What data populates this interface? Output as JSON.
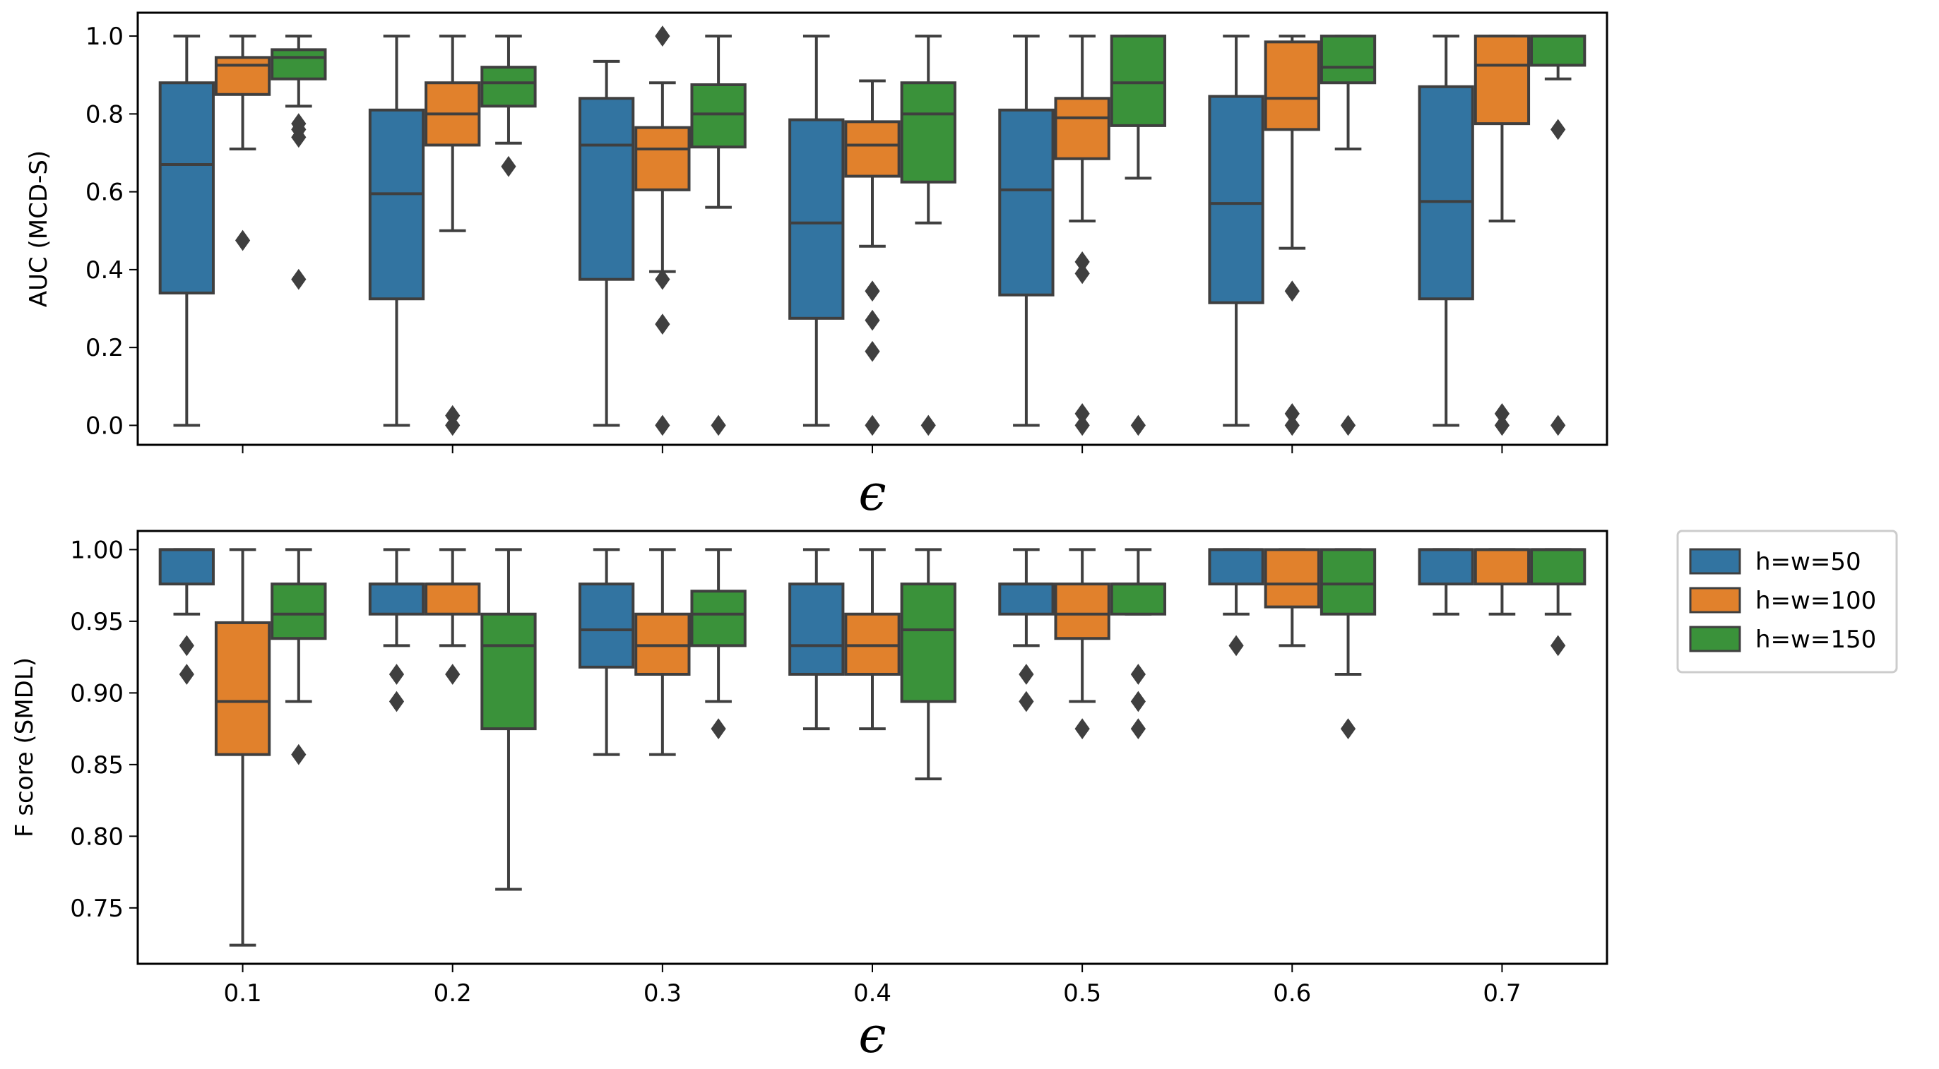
{
  "colors": {
    "h=w=50": "#3274a1",
    "h=w=100": "#e1812c",
    "h=w=150": "#3a923a",
    "line": "#3f3f3f",
    "frame": "#000000"
  },
  "legend": {
    "entries": [
      "h=w=50",
      "h=w=100",
      "h=w=150"
    ],
    "placement": "right-of-bottom-panel"
  },
  "chart_data": [
    {
      "type": "box",
      "panel": "top",
      "title": "",
      "xlabel": "ϵ",
      "ylabel": "AUC (MCD-S)",
      "ylim": [
        -0.05,
        1.06
      ],
      "yticks": [
        0.0,
        0.2,
        0.4,
        0.6,
        0.8,
        1.0
      ],
      "ytick_labels": [
        "0.0",
        "0.2",
        "0.4",
        "0.6",
        "0.8",
        "1.0"
      ],
      "categories": [
        "0.1",
        "0.2",
        "0.3",
        "0.4",
        "0.5",
        "0.6",
        "0.7"
      ],
      "show_xtick_labels": false,
      "series": [
        {
          "name": "h=w=50",
          "boxes": [
            {
              "whislo": 0.0,
              "q1": 0.34,
              "med": 0.67,
              "q3": 0.88,
              "whishi": 1.0,
              "fliers": []
            },
            {
              "whislo": 0.0,
              "q1": 0.325,
              "med": 0.595,
              "q3": 0.81,
              "whishi": 1.0,
              "fliers": []
            },
            {
              "whislo": 0.0,
              "q1": 0.375,
              "med": 0.72,
              "q3": 0.84,
              "whishi": 0.935,
              "fliers": []
            },
            {
              "whislo": 0.0,
              "q1": 0.275,
              "med": 0.52,
              "q3": 0.785,
              "whishi": 1.0,
              "fliers": []
            },
            {
              "whislo": 0.0,
              "q1": 0.335,
              "med": 0.605,
              "q3": 0.81,
              "whishi": 1.0,
              "fliers": []
            },
            {
              "whislo": 0.0,
              "q1": 0.315,
              "med": 0.57,
              "q3": 0.845,
              "whishi": 1.0,
              "fliers": []
            },
            {
              "whislo": 0.0,
              "q1": 0.325,
              "med": 0.575,
              "q3": 0.87,
              "whishi": 1.0,
              "fliers": []
            }
          ]
        },
        {
          "name": "h=w=100",
          "boxes": [
            {
              "whislo": 0.71,
              "q1": 0.85,
              "med": 0.925,
              "q3": 0.945,
              "whishi": 1.0,
              "fliers": [
                0.475
              ]
            },
            {
              "whislo": 0.5,
              "q1": 0.72,
              "med": 0.8,
              "q3": 0.88,
              "whishi": 1.0,
              "fliers": [
                0.025,
                0.0
              ]
            },
            {
              "whislo": 0.395,
              "q1": 0.605,
              "med": 0.71,
              "q3": 0.765,
              "whishi": 0.88,
              "fliers": [
                1.0,
                0.375,
                0.26,
                0.0
              ]
            },
            {
              "whislo": 0.46,
              "q1": 0.64,
              "med": 0.72,
              "q3": 0.78,
              "whishi": 0.885,
              "fliers": [
                0.345,
                0.27,
                0.19,
                0.0
              ]
            },
            {
              "whislo": 0.525,
              "q1": 0.685,
              "med": 0.79,
              "q3": 0.84,
              "whishi": 1.0,
              "fliers": [
                0.42,
                0.39,
                0.03,
                0.0
              ]
            },
            {
              "whislo": 0.455,
              "q1": 0.76,
              "med": 0.84,
              "q3": 0.985,
              "whishi": 1.0,
              "fliers": [
                0.345,
                0.03,
                0.0
              ]
            },
            {
              "whislo": 0.525,
              "q1": 0.775,
              "med": 0.925,
              "q3": 1.0,
              "whishi": 1.0,
              "fliers": [
                0.03,
                0.0
              ]
            }
          ]
        },
        {
          "name": "h=w=150",
          "boxes": [
            {
              "whislo": 0.82,
              "q1": 0.89,
              "med": 0.945,
              "q3": 0.965,
              "whishi": 1.0,
              "fliers": [
                0.775,
                0.76,
                0.74,
                0.375
              ]
            },
            {
              "whislo": 0.725,
              "q1": 0.82,
              "med": 0.88,
              "q3": 0.92,
              "whishi": 1.0,
              "fliers": [
                0.665
              ]
            },
            {
              "whislo": 0.56,
              "q1": 0.715,
              "med": 0.8,
              "q3": 0.875,
              "whishi": 1.0,
              "fliers": [
                0.0
              ]
            },
            {
              "whislo": 0.52,
              "q1": 0.625,
              "med": 0.8,
              "q3": 0.88,
              "whishi": 1.0,
              "fliers": [
                0.0
              ]
            },
            {
              "whislo": 0.635,
              "q1": 0.77,
              "med": 0.88,
              "q3": 1.0,
              "whishi": 1.0,
              "fliers": [
                0.0
              ]
            },
            {
              "whislo": 0.71,
              "q1": 0.88,
              "med": 0.92,
              "q3": 1.0,
              "whishi": 1.0,
              "fliers": [
                0.0
              ]
            },
            {
              "whislo": 0.89,
              "q1": 0.925,
              "med": 1.0,
              "q3": 1.0,
              "whishi": 1.0,
              "fliers": [
                0.76,
                0.0
              ]
            }
          ]
        }
      ]
    },
    {
      "type": "box",
      "panel": "bottom",
      "title": "",
      "xlabel": "ϵ",
      "ylabel": "F score (SMDL)",
      "ylim": [
        0.711,
        1.013
      ],
      "yticks": [
        0.75,
        0.8,
        0.85,
        0.9,
        0.95,
        1.0
      ],
      "ytick_labels": [
        "0.75",
        "0.80",
        "0.85",
        "0.90",
        "0.95",
        "1.00"
      ],
      "categories": [
        "0.1",
        "0.2",
        "0.3",
        "0.4",
        "0.5",
        "0.6",
        "0.7"
      ],
      "show_xtick_labels": true,
      "series": [
        {
          "name": "h=w=50",
          "boxes": [
            {
              "whislo": 0.955,
              "q1": 0.976,
              "med": 1.0,
              "q3": 1.0,
              "whishi": 1.0,
              "fliers": [
                0.933,
                0.913
              ]
            },
            {
              "whislo": 0.933,
              "q1": 0.955,
              "med": 0.976,
              "q3": 0.976,
              "whishi": 1.0,
              "fliers": [
                0.913,
                0.894
              ]
            },
            {
              "whislo": 0.857,
              "q1": 0.918,
              "med": 0.944,
              "q3": 0.976,
              "whishi": 1.0,
              "fliers": []
            },
            {
              "whislo": 0.875,
              "q1": 0.913,
              "med": 0.933,
              "q3": 0.976,
              "whishi": 1.0,
              "fliers": []
            },
            {
              "whislo": 0.933,
              "q1": 0.955,
              "med": 0.976,
              "q3": 0.976,
              "whishi": 1.0,
              "fliers": [
                0.913,
                0.894
              ]
            },
            {
              "whislo": 0.955,
              "q1": 0.976,
              "med": 1.0,
              "q3": 1.0,
              "whishi": 1.0,
              "fliers": [
                0.933
              ]
            },
            {
              "whislo": 0.955,
              "q1": 0.976,
              "med": 1.0,
              "q3": 1.0,
              "whishi": 1.0,
              "fliers": []
            }
          ]
        },
        {
          "name": "h=w=100",
          "boxes": [
            {
              "whislo": 0.724,
              "q1": 0.857,
              "med": 0.894,
              "q3": 0.949,
              "whishi": 1.0,
              "fliers": []
            },
            {
              "whislo": 0.933,
              "q1": 0.955,
              "med": 0.976,
              "q3": 0.976,
              "whishi": 1.0,
              "fliers": [
                0.913
              ]
            },
            {
              "whislo": 0.857,
              "q1": 0.913,
              "med": 0.933,
              "q3": 0.955,
              "whishi": 1.0,
              "fliers": []
            },
            {
              "whislo": 0.875,
              "q1": 0.913,
              "med": 0.933,
              "q3": 0.955,
              "whishi": 1.0,
              "fliers": []
            },
            {
              "whislo": 0.894,
              "q1": 0.938,
              "med": 0.955,
              "q3": 0.976,
              "whishi": 1.0,
              "fliers": [
                0.875
              ]
            },
            {
              "whislo": 0.933,
              "q1": 0.96,
              "med": 0.976,
              "q3": 1.0,
              "whishi": 1.0,
              "fliers": []
            },
            {
              "whislo": 0.955,
              "q1": 0.976,
              "med": 1.0,
              "q3": 1.0,
              "whishi": 1.0,
              "fliers": []
            }
          ]
        },
        {
          "name": "h=w=150",
          "boxes": [
            {
              "whislo": 0.894,
              "q1": 0.938,
              "med": 0.955,
              "q3": 0.976,
              "whishi": 1.0,
              "fliers": [
                0.857
              ]
            },
            {
              "whislo": 0.763,
              "q1": 0.875,
              "med": 0.933,
              "q3": 0.955,
              "whishi": 1.0,
              "fliers": []
            },
            {
              "whislo": 0.894,
              "q1": 0.933,
              "med": 0.955,
              "q3": 0.971,
              "whishi": 1.0,
              "fliers": [
                0.875
              ]
            },
            {
              "whislo": 0.84,
              "q1": 0.894,
              "med": 0.944,
              "q3": 0.976,
              "whishi": 1.0,
              "fliers": []
            },
            {
              "whislo": 0.955,
              "q1": 0.955,
              "med": 0.976,
              "q3": 0.976,
              "whishi": 1.0,
              "fliers": [
                0.913,
                0.894,
                0.875
              ]
            },
            {
              "whislo": 0.913,
              "q1": 0.955,
              "med": 0.976,
              "q3": 1.0,
              "whishi": 1.0,
              "fliers": [
                0.875
              ]
            },
            {
              "whislo": 0.955,
              "q1": 0.976,
              "med": 1.0,
              "q3": 1.0,
              "whishi": 1.0,
              "fliers": [
                0.933
              ]
            }
          ]
        }
      ]
    }
  ]
}
